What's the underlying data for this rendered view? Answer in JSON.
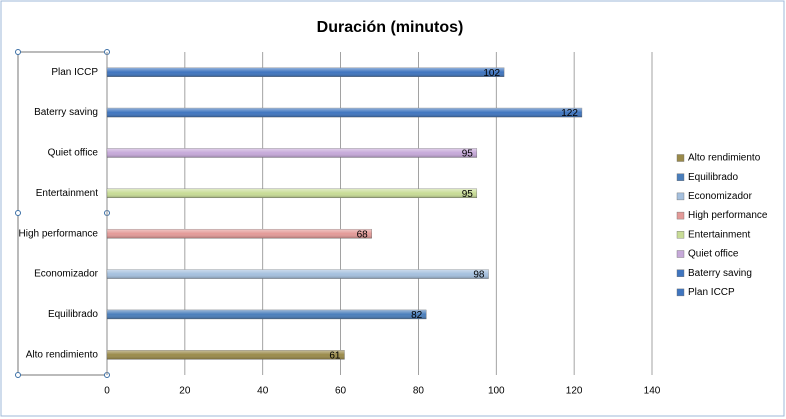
{
  "chart_data": {
    "type": "hbar",
    "title": "Duración (minutos)",
    "categories": [
      "Alto rendimiento",
      "Equilibrado",
      "Economizador",
      "High performance",
      "Entertainment",
      "Quiet office",
      "Baterry saving",
      "Plan ICCP"
    ],
    "values": [
      61,
      82,
      98,
      68,
      95,
      95,
      122,
      102
    ],
    "colors": [
      "#9a8a4a",
      "#4a7ebb",
      "#a5c0de",
      "#e39a98",
      "#c8dc96",
      "#c6a9d9",
      "#3f75bf",
      "#3f75bf"
    ],
    "xlim": [
      0,
      140
    ],
    "xticks": [
      0,
      20,
      40,
      60,
      80,
      100,
      120,
      140
    ],
    "grid": true,
    "legend": "right"
  }
}
